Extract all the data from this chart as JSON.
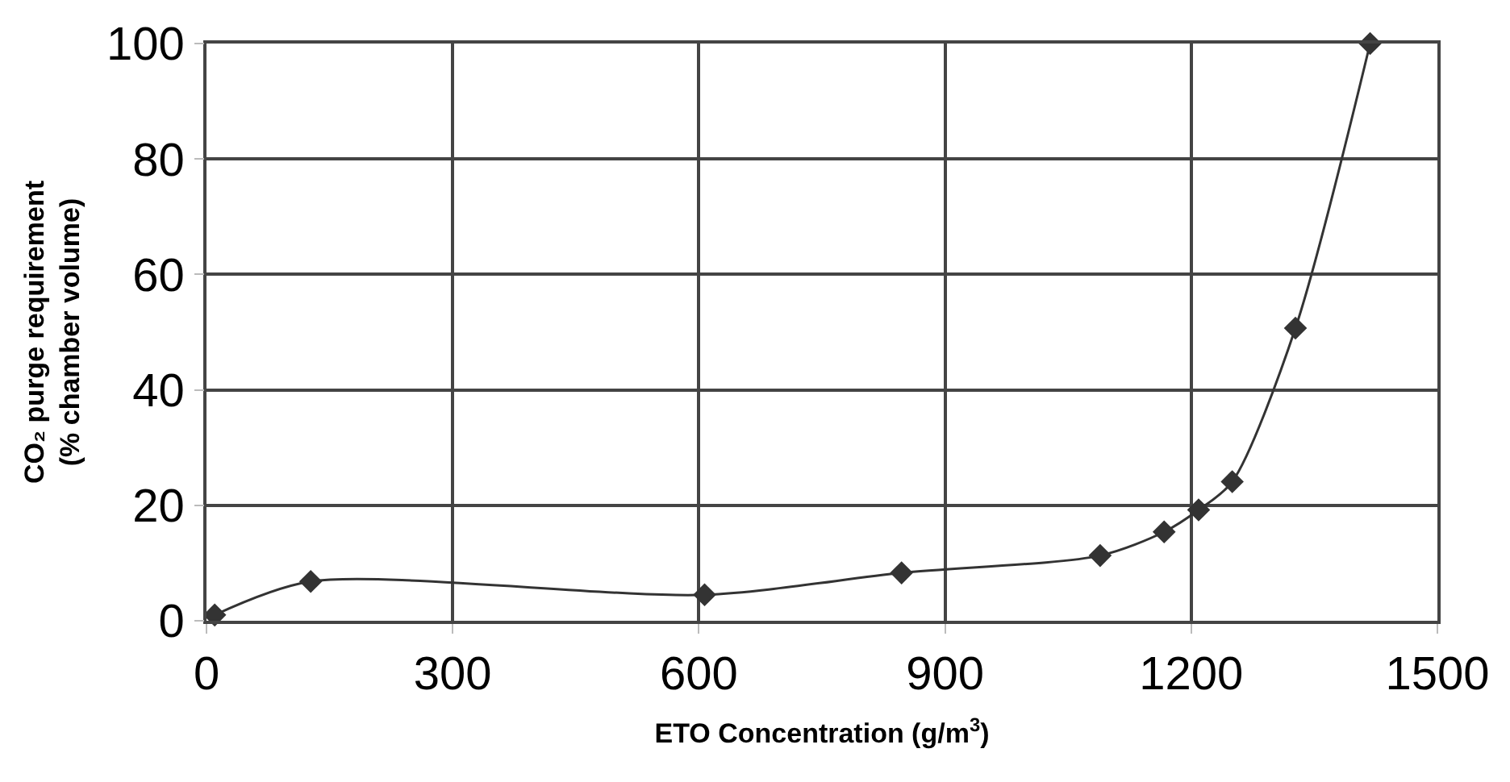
{
  "chart_data": {
    "type": "line",
    "xlabel": "ETO Concentration (g/m$^{3}$)",
    "ylabel": "CO₂ purge requirement\n(% chamber volume)",
    "x": [
      10,
      127,
      607,
      847,
      1089,
      1167,
      1209,
      1250,
      1327,
      1418
    ],
    "series": [
      {
        "color": "#333333",
        "values": [
          1,
          6.8,
          4.5,
          8.3,
          11.3,
          15.4,
          19.2,
          24.1,
          50.7,
          100
        ]
      }
    ],
    "xlim": [
      0,
      1500
    ],
    "xticks": [
      0,
      300,
      600,
      900,
      1200,
      1500
    ],
    "ylim": [
      0,
      100
    ],
    "yticks": [
      0,
      20,
      40,
      60,
      80,
      100
    ],
    "grid": true,
    "marker": "diamond",
    "line_style": "solid"
  }
}
